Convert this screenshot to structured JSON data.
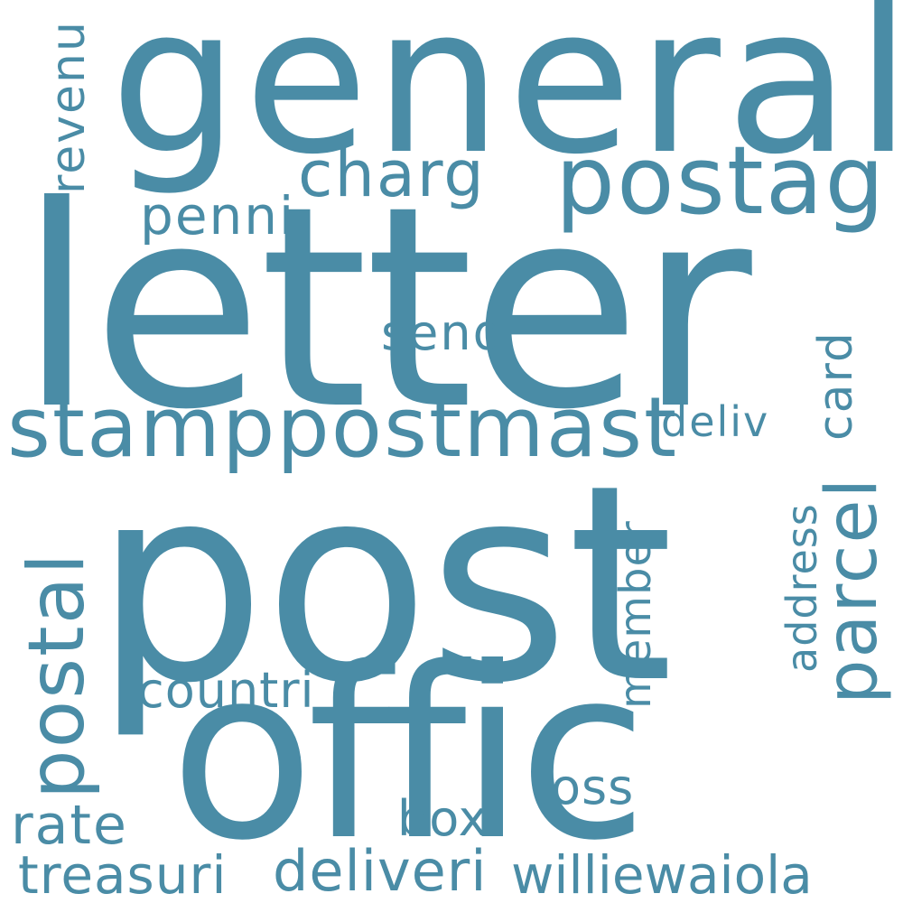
{
  "word_cloud": {
    "color": "#4a8ca6",
    "background": "#ffffff",
    "words": {
      "letter": "letter",
      "post": "post",
      "offic": "offic",
      "general": "general",
      "postag": "postag",
      "stamppostmast": "stamppostmast",
      "charg": "charg",
      "penni": "penni",
      "revenu": "revenu",
      "send": "send",
      "deliv": "deliv",
      "card": "card",
      "parcel": "parcel",
      "address": "address",
      "member": "member",
      "postal": "postal",
      "countri": "countri",
      "loss": "loss",
      "box": "box",
      "rate": "rate",
      "treasuri": "treasuri",
      "deliveri": "deliveri",
      "williewaiola": "williewaiola"
    }
  }
}
